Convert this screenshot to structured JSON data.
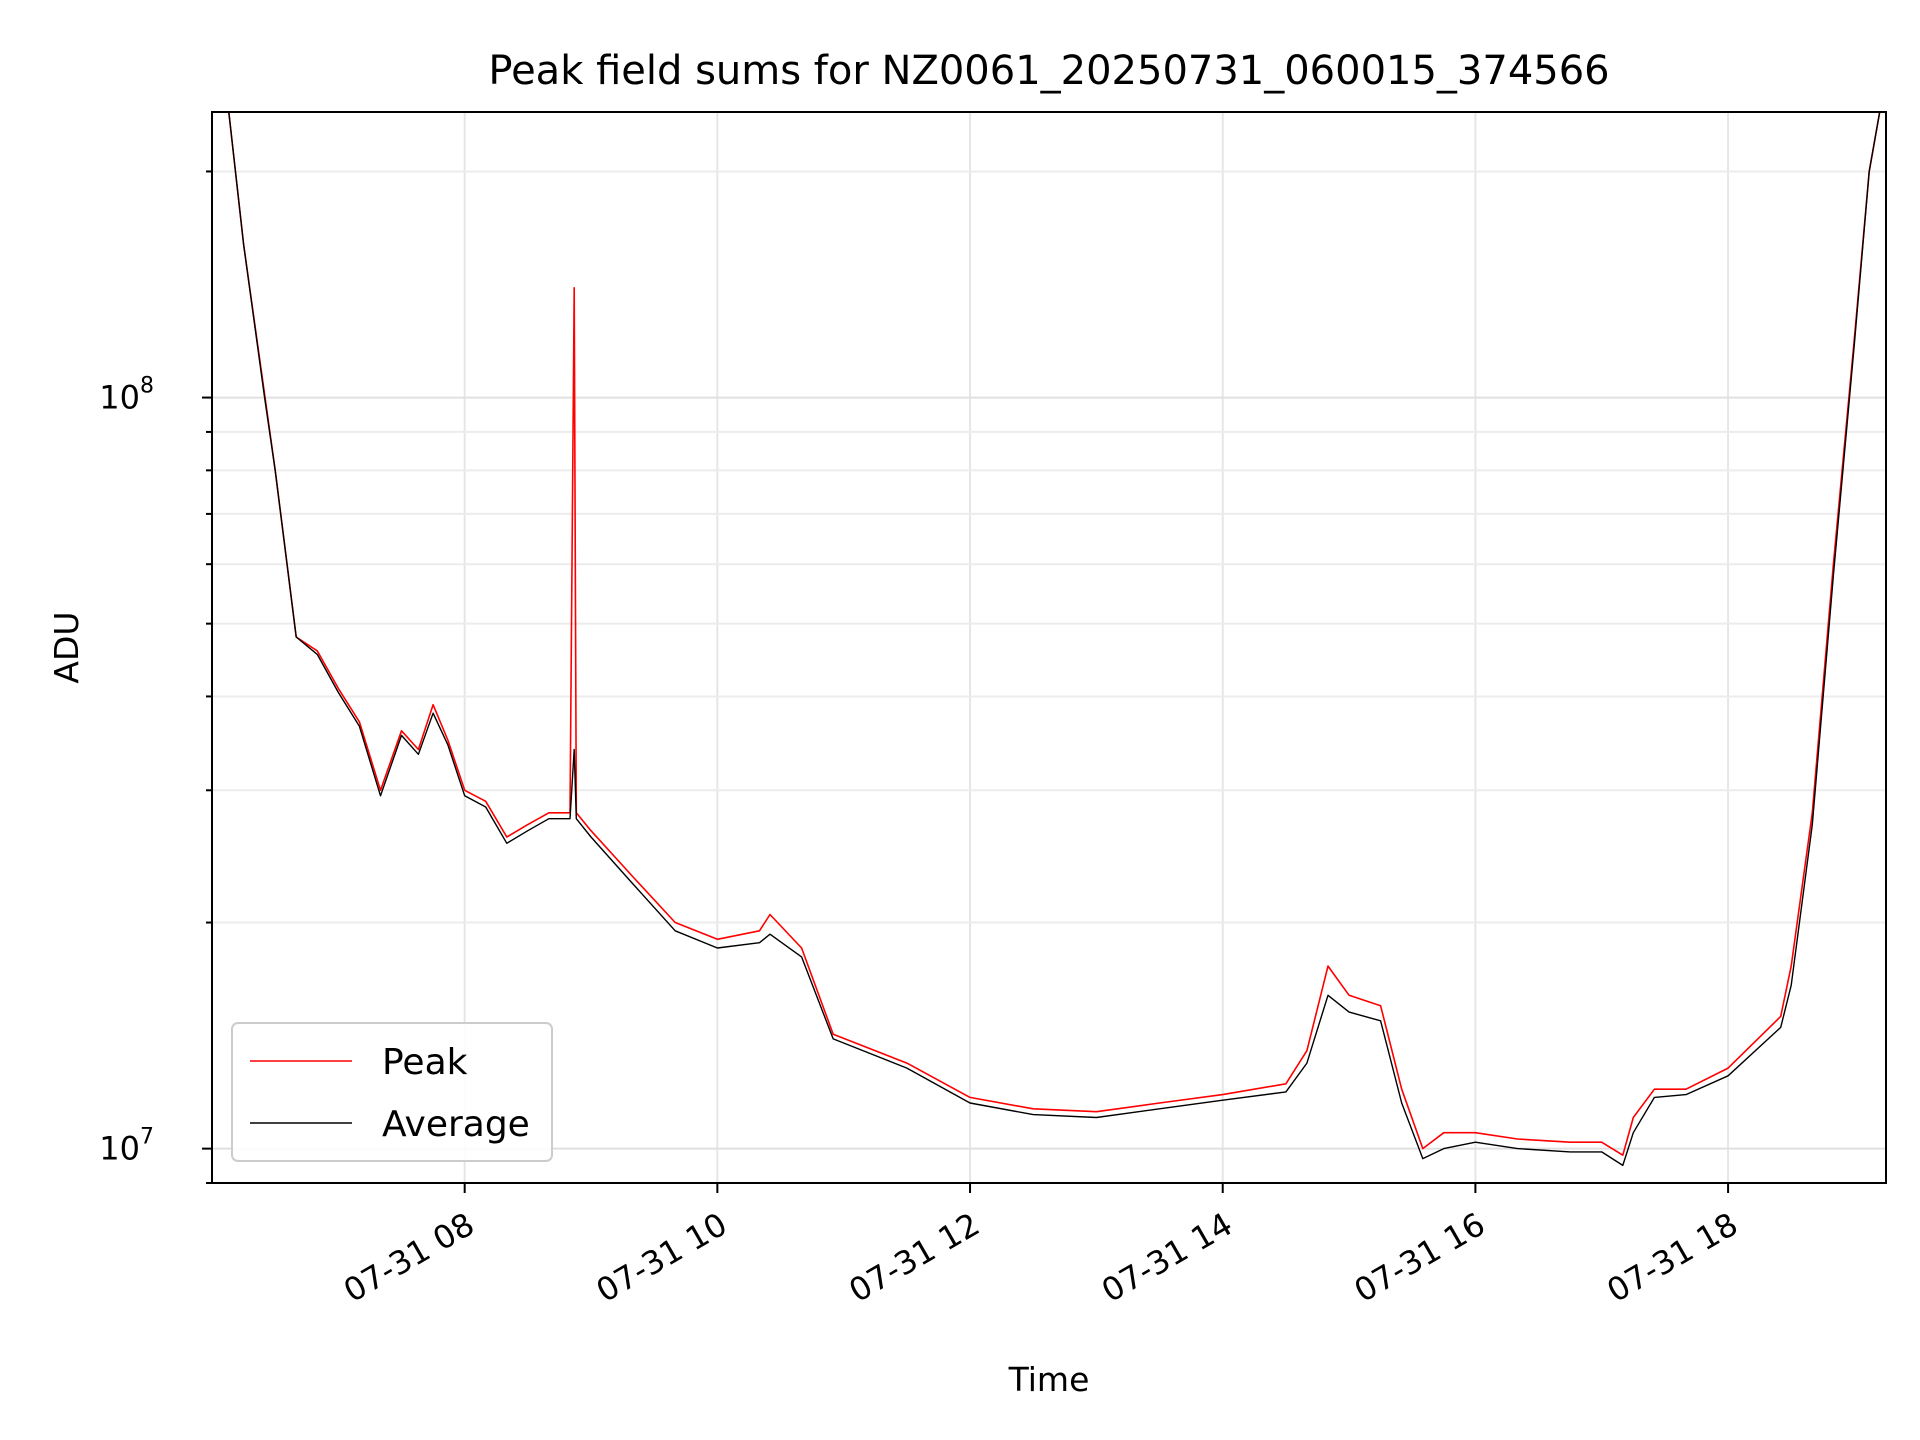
{
  "chart_data": {
    "type": "line",
    "title": "Peak field sums for NZ0061_20250731_060015_374566",
    "xlabel": "Time",
    "ylabel": "ADU",
    "y_scale": "log",
    "x_range": [
      "2025-07-31 06:00",
      "2025-07-31 19:15"
    ],
    "ylim": [
      9000000,
      240000000
    ],
    "x_ticks": [
      {
        "value": "2025-07-31 08:00",
        "label": "07-31 08"
      },
      {
        "value": "2025-07-31 10:00",
        "label": "07-31 10"
      },
      {
        "value": "2025-07-31 12:00",
        "label": "07-31 12"
      },
      {
        "value": "2025-07-31 14:00",
        "label": "07-31 14"
      },
      {
        "value": "2025-07-31 16:00",
        "label": "07-31 16"
      },
      {
        "value": "2025-07-31 18:00",
        "label": "07-31 18"
      }
    ],
    "y_ticks": [
      {
        "value": 10000000,
        "base": "10",
        "exp": "7"
      },
      {
        "value": 100000000,
        "base": "10",
        "exp": "8"
      }
    ],
    "grid": true,
    "legend_position": "lower-left",
    "series": [
      {
        "name": "Peak",
        "color": "#ff0000",
        "x": [
          "2025-07-31 06:08",
          "2025-07-31 06:15",
          "2025-07-31 06:25",
          "2025-07-31 06:30",
          "2025-07-31 06:35",
          "2025-07-31 06:40",
          "2025-07-31 06:50",
          "2025-07-31 07:00",
          "2025-07-31 07:10",
          "2025-07-31 07:20",
          "2025-07-31 07:30",
          "2025-07-31 07:38",
          "2025-07-31 07:45",
          "2025-07-31 07:52",
          "2025-07-31 08:00",
          "2025-07-31 08:10",
          "2025-07-31 08:20",
          "2025-07-31 08:30",
          "2025-07-31 08:40",
          "2025-07-31 08:50",
          "2025-07-31 08:52",
          "2025-07-31 08:53",
          "2025-07-31 09:00",
          "2025-07-31 09:20",
          "2025-07-31 09:40",
          "2025-07-31 10:00",
          "2025-07-31 10:20",
          "2025-07-31 10:25",
          "2025-07-31 10:40",
          "2025-07-31 10:55",
          "2025-07-31 11:30",
          "2025-07-31 12:00",
          "2025-07-31 12:30",
          "2025-07-31 13:00",
          "2025-07-31 13:30",
          "2025-07-31 14:00",
          "2025-07-31 14:30",
          "2025-07-31 14:40",
          "2025-07-31 14:50",
          "2025-07-31 15:00",
          "2025-07-31 15:15",
          "2025-07-31 15:25",
          "2025-07-31 15:35",
          "2025-07-31 15:45",
          "2025-07-31 16:00",
          "2025-07-31 16:20",
          "2025-07-31 16:45",
          "2025-07-31 17:00",
          "2025-07-31 17:10",
          "2025-07-31 17:15",
          "2025-07-31 17:25",
          "2025-07-31 17:40",
          "2025-07-31 18:00",
          "2025-07-31 18:25",
          "2025-07-31 18:30",
          "2025-07-31 18:40",
          "2025-07-31 18:50",
          "2025-07-31 19:00",
          "2025-07-31 19:07",
          "2025-07-31 19:12",
          "2025-07-31 19:15"
        ],
        "y": [
          240000000,
          160000000,
          101000000,
          80000000,
          62000000,
          48000000,
          46000000,
          41000000,
          37000000,
          30000000,
          36000000,
          34000000,
          39000000,
          35000000,
          30000000,
          29000000,
          26000000,
          27000000,
          28000000,
          28000000,
          140000000,
          28000000,
          26500000,
          23000000,
          20000000,
          19000000,
          19500000,
          20500000,
          18500000,
          14200000,
          13000000,
          11700000,
          11300000,
          11200000,
          11500000,
          11800000,
          12200000,
          13500000,
          17500000,
          16000000,
          15500000,
          12000000,
          10000000,
          10500000,
          10500000,
          10300000,
          10200000,
          10200000,
          9800000,
          11000000,
          12000000,
          12000000,
          12800000,
          15000000,
          17500000,
          28000000,
          60000000,
          120000000,
          200000000,
          240000000,
          240000000
        ]
      },
      {
        "name": "Average",
        "color": "#000000",
        "x": [
          "2025-07-31 06:08",
          "2025-07-31 06:15",
          "2025-07-31 06:25",
          "2025-07-31 06:30",
          "2025-07-31 06:35",
          "2025-07-31 06:40",
          "2025-07-31 06:50",
          "2025-07-31 07:00",
          "2025-07-31 07:10",
          "2025-07-31 07:20",
          "2025-07-31 07:30",
          "2025-07-31 07:38",
          "2025-07-31 07:45",
          "2025-07-31 07:52",
          "2025-07-31 08:00",
          "2025-07-31 08:10",
          "2025-07-31 08:20",
          "2025-07-31 08:30",
          "2025-07-31 08:40",
          "2025-07-31 08:50",
          "2025-07-31 08:52",
          "2025-07-31 08:53",
          "2025-07-31 09:00",
          "2025-07-31 09:20",
          "2025-07-31 09:40",
          "2025-07-31 10:00",
          "2025-07-31 10:20",
          "2025-07-31 10:25",
          "2025-07-31 10:40",
          "2025-07-31 10:55",
          "2025-07-31 11:30",
          "2025-07-31 12:00",
          "2025-07-31 12:30",
          "2025-07-31 13:00",
          "2025-07-31 13:30",
          "2025-07-31 14:00",
          "2025-07-31 14:30",
          "2025-07-31 14:40",
          "2025-07-31 14:50",
          "2025-07-31 15:00",
          "2025-07-31 15:15",
          "2025-07-31 15:25",
          "2025-07-31 15:35",
          "2025-07-31 15:45",
          "2025-07-31 16:00",
          "2025-07-31 16:20",
          "2025-07-31 16:45",
          "2025-07-31 17:00",
          "2025-07-31 17:10",
          "2025-07-31 17:15",
          "2025-07-31 17:25",
          "2025-07-31 17:40",
          "2025-07-31 18:00",
          "2025-07-31 18:25",
          "2025-07-31 18:30",
          "2025-07-31 18:40",
          "2025-07-31 18:50",
          "2025-07-31 19:00",
          "2025-07-31 19:07",
          "2025-07-31 19:12",
          "2025-07-31 19:15"
        ],
        "y": [
          240000000,
          160000000,
          100000000,
          80000000,
          62000000,
          48000000,
          45500000,
          40500000,
          36500000,
          29500000,
          35500000,
          33500000,
          38000000,
          34500000,
          29500000,
          28500000,
          25500000,
          26500000,
          27500000,
          27500000,
          34000000,
          27500000,
          26000000,
          22500000,
          19500000,
          18500000,
          18800000,
          19300000,
          18000000,
          14000000,
          12800000,
          11500000,
          11100000,
          11000000,
          11300000,
          11600000,
          11900000,
          13000000,
          16000000,
          15200000,
          14800000,
          11500000,
          9700000,
          10000000,
          10200000,
          10000000,
          9900000,
          9900000,
          9500000,
          10500000,
          11700000,
          11800000,
          12500000,
          14500000,
          16500000,
          27000000,
          58000000,
          118000000,
          200000000,
          240000000,
          240000000
        ]
      }
    ]
  }
}
